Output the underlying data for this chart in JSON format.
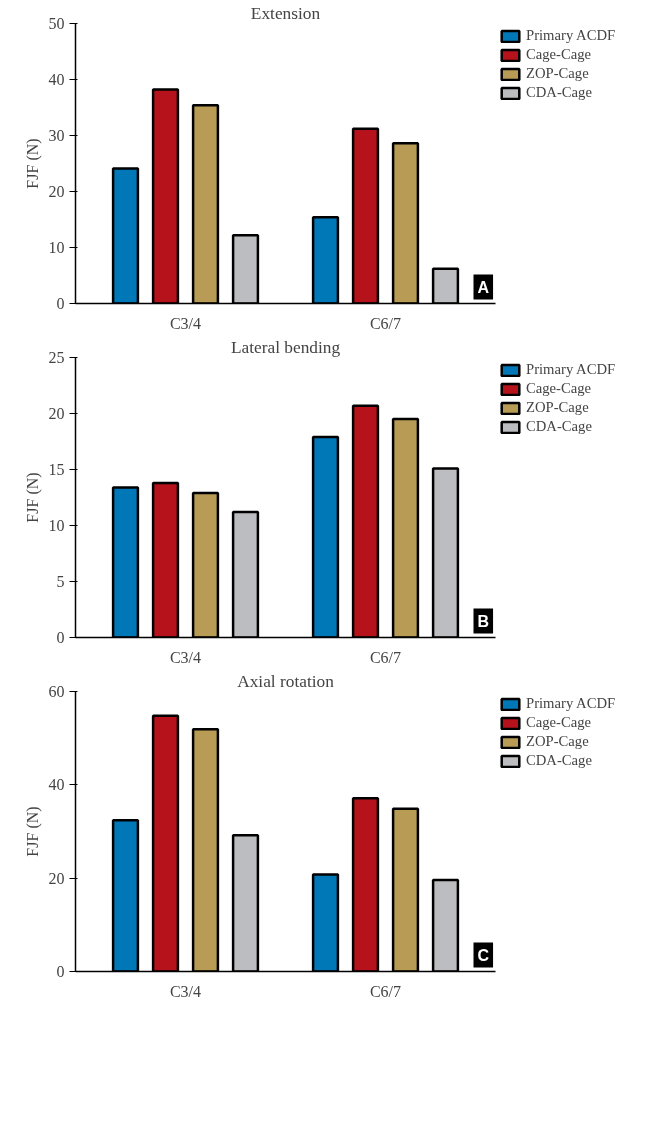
{
  "chart_data": [
    {
      "type": "bar",
      "title": "Extension",
      "ylabel": "FJF (N)",
      "categories": [
        "C3/4",
        "C6/7"
      ],
      "ylim": [
        0,
        50
      ],
      "yticks": [
        0,
        10,
        20,
        30,
        40,
        50
      ],
      "grid": false,
      "legend": "top right",
      "annotations": [
        "A"
      ],
      "series": [
        {
          "name": "Primary ACDF",
          "color": "#0077b6",
          "values": [
            24.1,
            15.4
          ]
        },
        {
          "name": "Cage-Cage",
          "color": "#b5121b",
          "values": [
            38.2,
            31.2
          ]
        },
        {
          "name": "ZOP-Cage",
          "color": "#b89b55",
          "values": [
            35.4,
            28.6
          ]
        },
        {
          "name": "CDA-Cage",
          "color": "#bcbdc0",
          "values": [
            12.2,
            6.2
          ]
        }
      ]
    },
    {
      "type": "bar",
      "title": "Lateral bending",
      "ylabel": "FJF (N)",
      "categories": [
        "C3/4",
        "C6/7"
      ],
      "ylim": [
        0,
        25
      ],
      "yticks": [
        0,
        5,
        10,
        15,
        20,
        25
      ],
      "grid": false,
      "legend": "top right",
      "annotations": [
        "B"
      ],
      "series": [
        {
          "name": "Primary ACDF",
          "color": "#0077b6",
          "values": [
            13.4,
            17.9
          ]
        },
        {
          "name": "Cage-Cage",
          "color": "#b5121b",
          "values": [
            13.8,
            20.7
          ]
        },
        {
          "name": "ZOP-Cage",
          "color": "#b89b55",
          "values": [
            12.9,
            19.5
          ]
        },
        {
          "name": "CDA-Cage",
          "color": "#bcbdc0",
          "values": [
            11.2,
            15.1
          ]
        }
      ]
    },
    {
      "type": "bar",
      "title": "Axial rotation",
      "ylabel": "FJF (N)",
      "categories": [
        "C3/4",
        "C6/7"
      ],
      "ylim": [
        0,
        60
      ],
      "yticks": [
        0,
        20,
        40,
        60
      ],
      "grid": false,
      "legend": "top right",
      "annotations": [
        "C"
      ],
      "series": [
        {
          "name": "Primary ACDF",
          "color": "#0077b6",
          "values": [
            32.4,
            20.8
          ]
        },
        {
          "name": "Cage-Cage",
          "color": "#b5121b",
          "values": [
            54.8,
            37.1
          ]
        },
        {
          "name": "ZOP-Cage",
          "color": "#b89b55",
          "values": [
            51.9,
            34.9
          ]
        },
        {
          "name": "CDA-Cage",
          "color": "#bcbdc0",
          "values": [
            29.2,
            19.6
          ]
        }
      ]
    }
  ]
}
